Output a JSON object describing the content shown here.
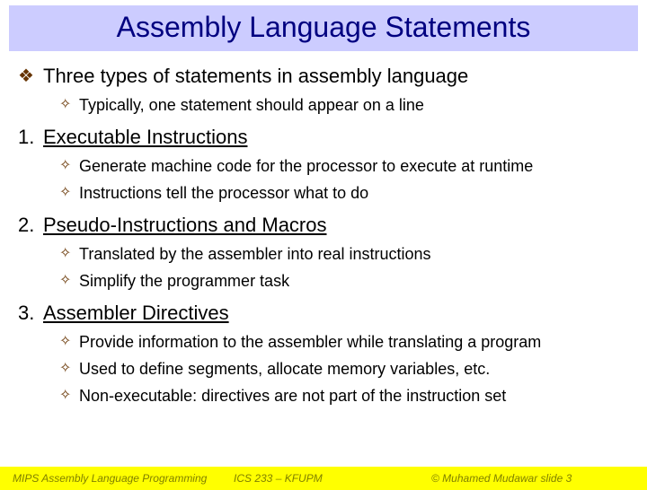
{
  "title": "Assembly Language Statements",
  "intro": {
    "text": "Three types of statements in assembly language",
    "sub": [
      "Typically, one statement should appear on a line"
    ]
  },
  "sections": [
    {
      "num": "1.",
      "heading": "Executable Instructions",
      "items": [
        "Generate machine code for the processor to execute at runtime",
        "Instructions tell the processor what to do"
      ]
    },
    {
      "num": "2.",
      "heading": "Pseudo-Instructions and Macros",
      "items": [
        "Translated by the assembler into real instructions",
        "Simplify the programmer task"
      ]
    },
    {
      "num": "3.",
      "heading": "Assembler Directives",
      "items": [
        "Provide information to the assembler while translating a program",
        "Used to define segments, allocate memory variables, etc.",
        "Non-executable: directives are not part of the instruction set"
      ]
    }
  ],
  "footer": {
    "left": "MIPS Assembly Language Programming",
    "center": "ICS 233 – KFUPM",
    "right": "© Muhamed Mudawar   slide 3"
  },
  "bullets": {
    "diamond": "❖",
    "star": "✧"
  },
  "colors": {
    "title_bg": "#ccccff",
    "title_fg": "#000080",
    "bullet": "#663300",
    "footer_bg": "#ffff00",
    "footer_fg": "#808000"
  }
}
